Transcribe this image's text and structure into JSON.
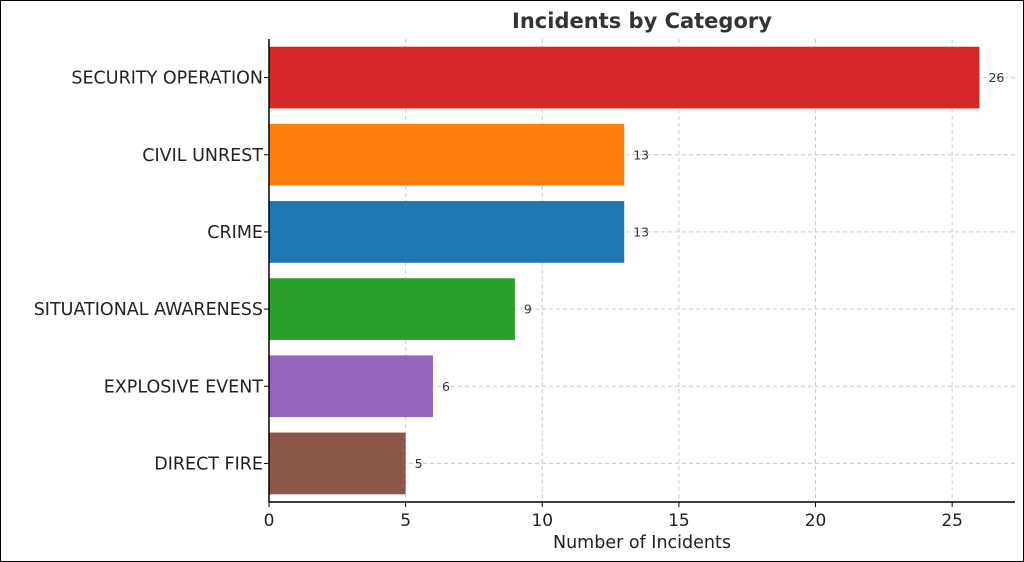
{
  "chart_data": {
    "type": "bar",
    "orientation": "horizontal",
    "title": "Incidents by Category",
    "xlabel": "Number of Incidents",
    "ylabel": "",
    "xlim": [
      0,
      27.3
    ],
    "xticks": [
      0,
      5,
      10,
      15,
      20,
      25
    ],
    "grid": true,
    "categories": [
      "SECURITY OPERATION",
      "CIVIL UNREST",
      "CRIME",
      "SITUATIONAL AWARENESS",
      "EXPLOSIVE EVENT",
      "DIRECT FIRE"
    ],
    "values": [
      26,
      13,
      13,
      9,
      6,
      5
    ],
    "colors": [
      "#d62728",
      "#ff7f0e",
      "#1f77b4",
      "#2ca02c",
      "#9467bd",
      "#8c564b"
    ],
    "data_labels": [
      "26",
      "13",
      "13",
      "9",
      "6",
      "5"
    ]
  }
}
